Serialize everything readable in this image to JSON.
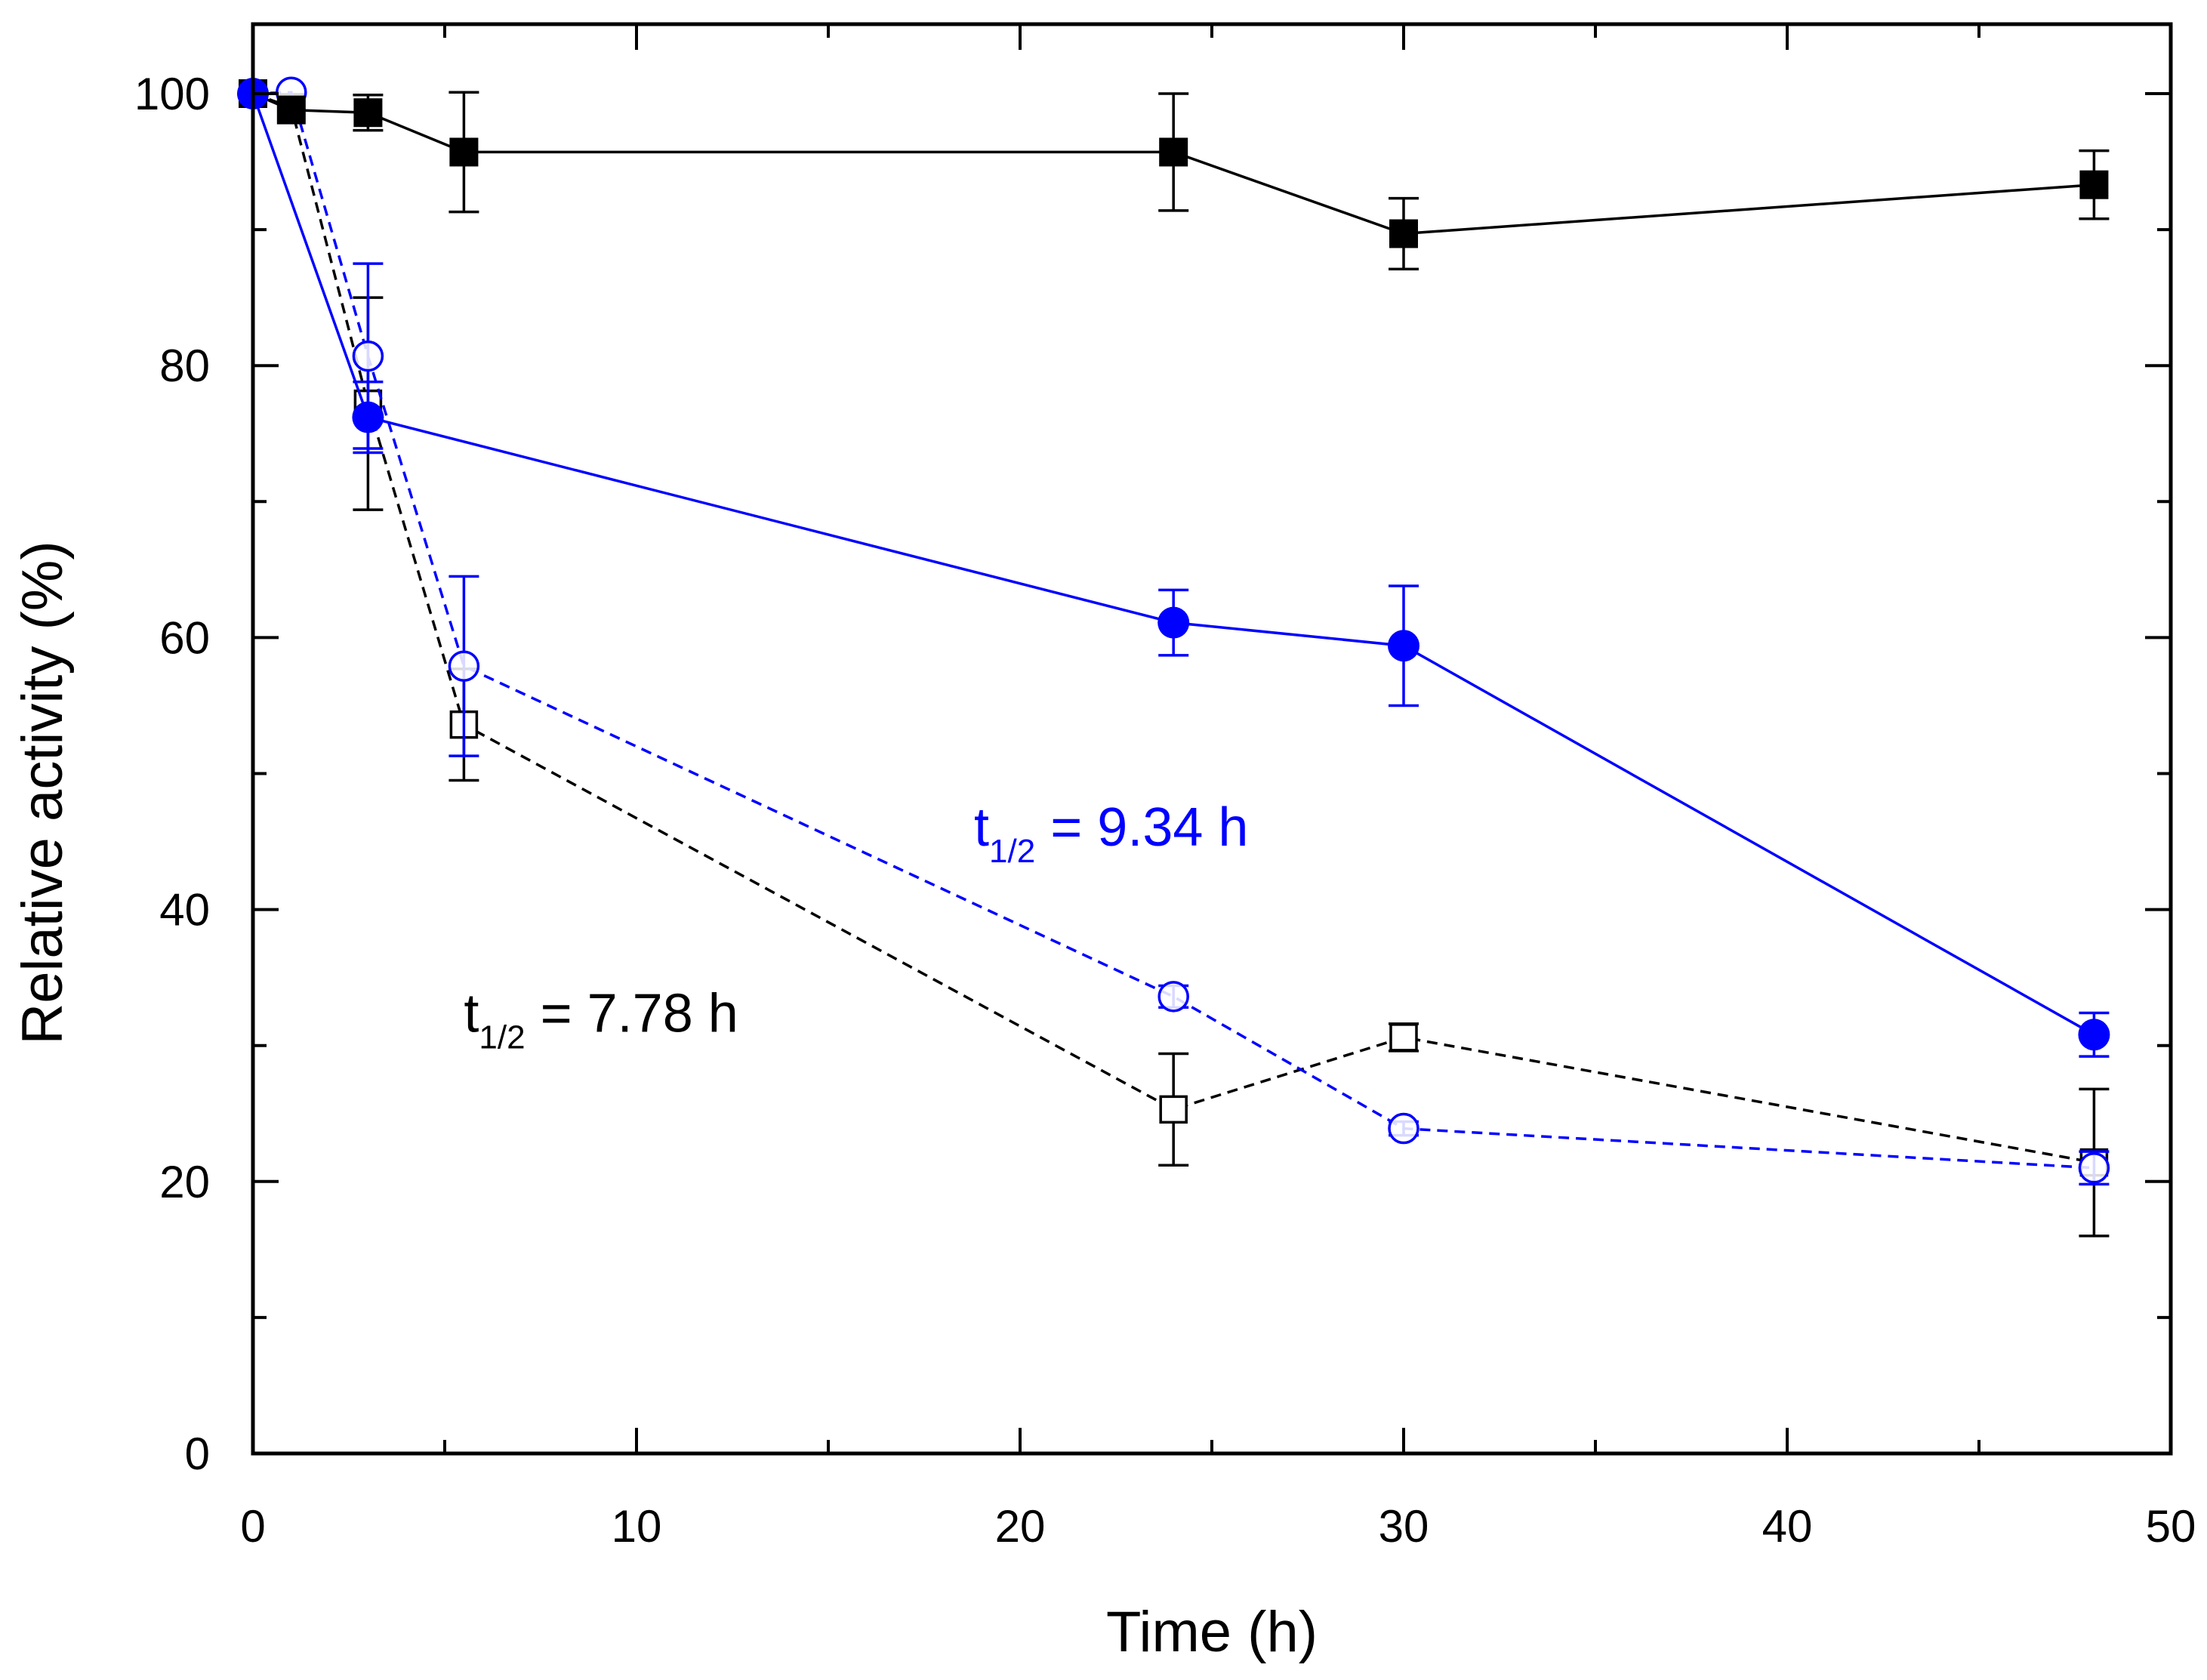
{
  "chart_data": {
    "type": "scatter",
    "xlabel": "Time (h)",
    "ylabel": "Relative activity (%)",
    "xlim": [
      0,
      50
    ],
    "ylim": [
      0,
      105
    ],
    "x_major_ticks": [
      0,
      10,
      20,
      30,
      40,
      50
    ],
    "x_minor_ticks": [
      5,
      15,
      25,
      35,
      45
    ],
    "y_major_ticks": [
      0,
      20,
      40,
      60,
      80,
      100
    ],
    "y_minor_ticks": [
      10,
      30,
      50,
      70,
      90
    ],
    "grid": false,
    "legend": "none",
    "colors": {
      "black": "#000000",
      "blue": "#0000ff"
    },
    "series": [
      {
        "marker": "filled-square",
        "color": "#000000",
        "line": "solid",
        "x": [
          0,
          1,
          3,
          5.5,
          24,
          30,
          48
        ],
        "y": [
          100,
          98.8,
          98.6,
          95.7,
          95.7,
          89.7,
          93.3
        ],
        "err": [
          0,
          0,
          1.3,
          4.4,
          4.3,
          2.6,
          2.5
        ]
      },
      {
        "marker": "filled-circle",
        "color": "#0000ff",
        "line": "solid",
        "x": [
          0,
          3,
          24,
          30,
          48
        ],
        "y": [
          100,
          76.2,
          61.1,
          59.4,
          30.8
        ],
        "err": [
          0,
          2.6,
          2.4,
          4.4,
          1.6
        ]
      },
      {
        "marker": "open-square",
        "color": "#000000",
        "line": "dashed",
        "x": [
          0,
          1,
          3,
          5.5,
          24,
          30,
          48
        ],
        "y": [
          100,
          99.0,
          77.2,
          53.6,
          25.3,
          30.6,
          21.4
        ],
        "err": [
          0,
          0,
          7.8,
          4.1,
          4.1,
          1.0,
          5.4
        ]
      },
      {
        "marker": "open-circle",
        "color": "#0000ff",
        "line": "dashed",
        "x": [
          0,
          1,
          3,
          5.5,
          24,
          30,
          48
        ],
        "y": [
          100,
          100.1,
          80.7,
          57.9,
          33.6,
          23.9,
          21.0
        ],
        "err": [
          0,
          0,
          6.8,
          6.6,
          0.8,
          0.5,
          1.2
        ]
      }
    ],
    "annotations": [
      {
        "main": "t",
        "sub": "1/2",
        "rest": " = 9.34 h",
        "color": "#0000ff",
        "x": 18.8,
        "y": 44.7
      },
      {
        "main": "t",
        "sub": "1/2",
        "rest": " = 7.78 h",
        "color": "#000000",
        "x": 5.5,
        "y": 31.0
      }
    ]
  }
}
